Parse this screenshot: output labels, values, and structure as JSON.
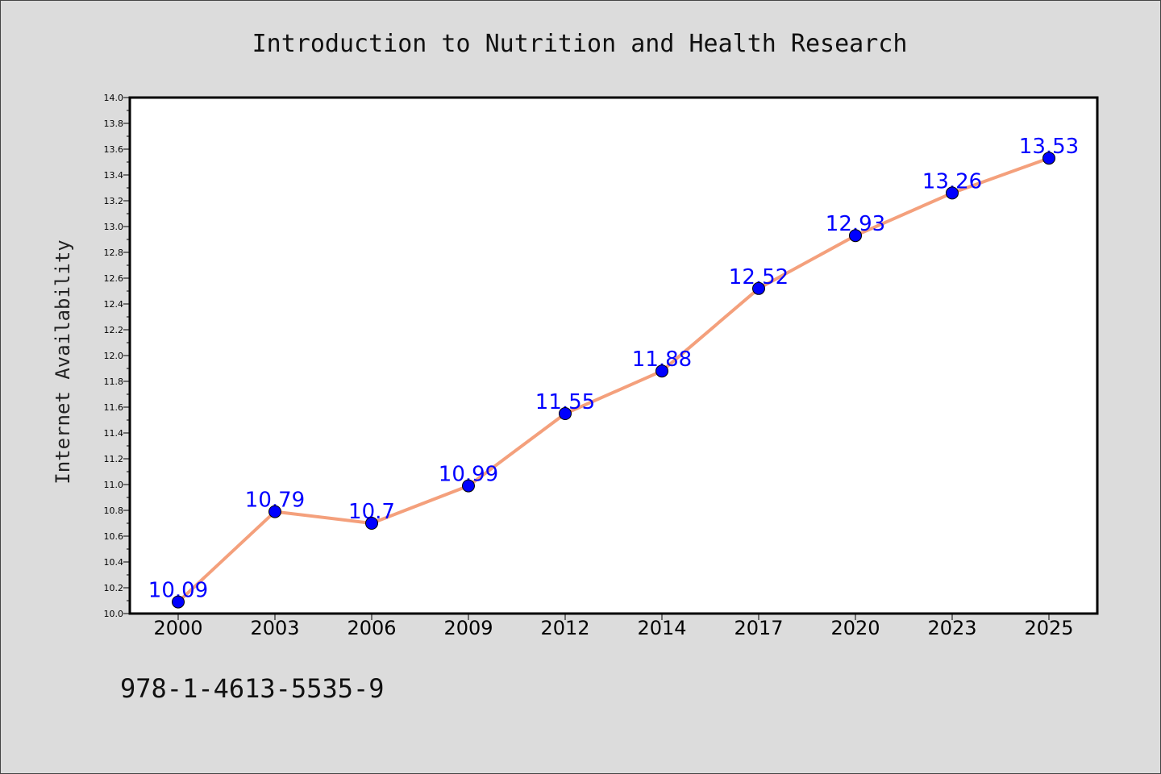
{
  "chart_data": {
    "type": "line",
    "title": "Introduction to Nutrition and Health Research",
    "xlabel": "",
    "ylabel": "Internet Availability",
    "categories": [
      "2000",
      "2003",
      "2006",
      "2009",
      "2012",
      "2014",
      "2017",
      "2020",
      "2023",
      "2025"
    ],
    "series": [
      {
        "values": [
          10.09,
          10.79,
          10.7,
          10.99,
          11.55,
          11.88,
          12.52,
          12.93,
          13.26,
          13.53
        ],
        "data_labels": [
          "10.09",
          "10.79",
          "10.7",
          "10.99",
          "11.55",
          "11.88",
          "12.52",
          "12.93",
          "13.26",
          "13.53"
        ],
        "line_color": "#f4a07c",
        "marker_color": "#0000ff"
      }
    ],
    "ylim": [
      10.0,
      14.0
    ],
    "yticks": [
      "10.0",
      "10.2",
      "10.4",
      "10.6",
      "10.8",
      "11.0",
      "11.2",
      "11.4",
      "11.6",
      "11.8",
      "12.0",
      "12.2",
      "12.4",
      "12.6",
      "12.8",
      "13.0",
      "13.2",
      "13.4",
      "13.6",
      "13.8",
      "14.0"
    ],
    "grid": false,
    "legend": "none"
  },
  "footer": {
    "isbn": "978-1-4613-5535-9"
  },
  "colors": {
    "background": "#dcdcdc",
    "plot_background": "#ffffff",
    "line": "#f4a07c",
    "marker": "#0000ff",
    "data_label": "#0000ff"
  }
}
